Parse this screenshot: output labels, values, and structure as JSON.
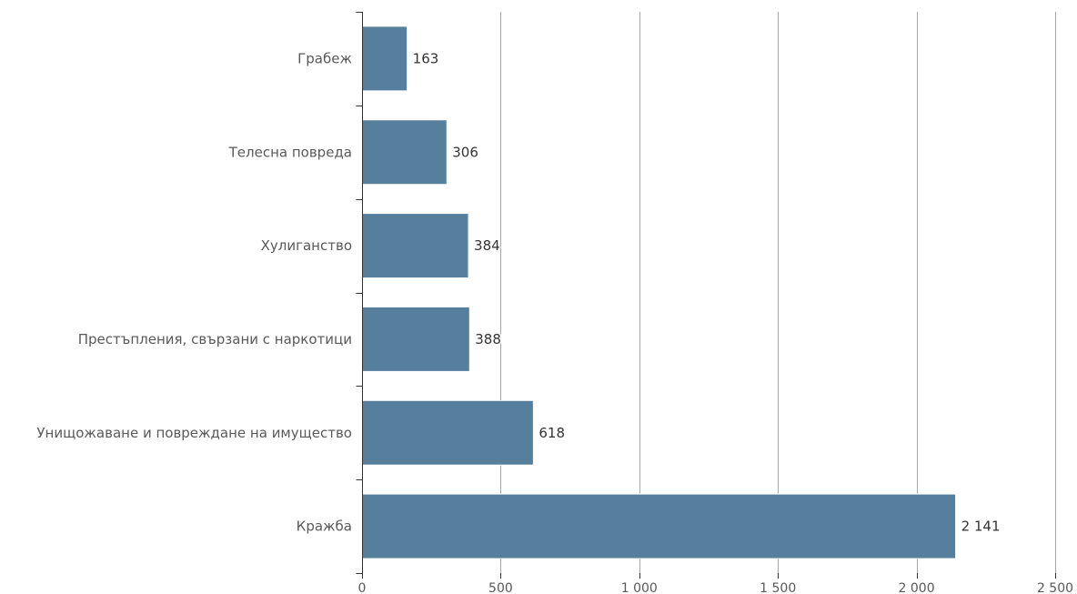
{
  "chart_data": {
    "type": "bar",
    "orientation": "horizontal",
    "categories": [
      "Грабеж",
      "Телесна повреда",
      "Хулиганство",
      "Престъпления, свързани с наркотици",
      "Унищожаване и повреждане на имущество",
      "Кражба"
    ],
    "values": [
      163,
      306,
      384,
      388,
      618,
      2141
    ],
    "value_labels": [
      "163",
      "306",
      "384",
      "388",
      "618",
      "2 141"
    ],
    "x_ticks": [
      0,
      500,
      1000,
      1500,
      2000,
      2500
    ],
    "x_tick_labels": [
      "0",
      "500",
      "1 000",
      "1 500",
      "2 000",
      "2 500"
    ],
    "xlim": [
      0,
      2500
    ],
    "grid": true,
    "legend": "none",
    "bar_color": "#567f9e"
  }
}
